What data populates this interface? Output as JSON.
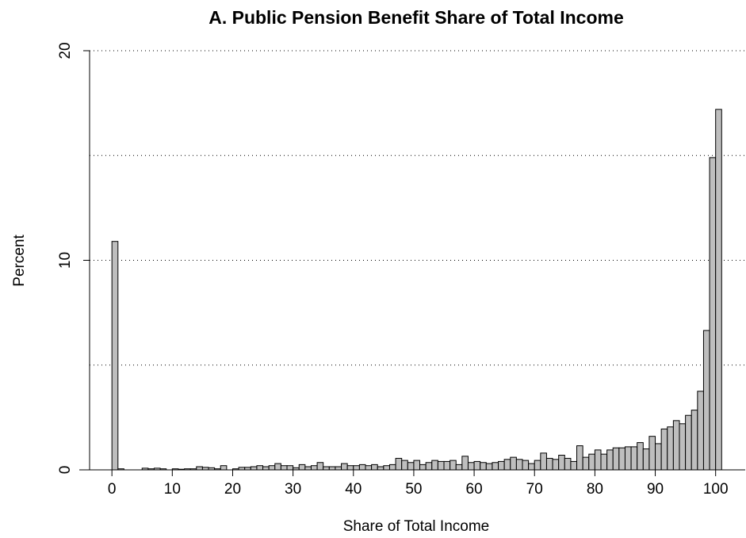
{
  "chart_data": {
    "type": "histogram",
    "title": "A. Public Pension Benefit Share of Total Income",
    "x_label": "Share of Total Income",
    "y_label": "Percent",
    "bins": [
      0,
      1,
      2,
      3,
      4,
      5,
      6,
      7,
      8,
      9,
      10,
      11,
      12,
      13,
      14,
      15,
      16,
      17,
      18,
      19,
      20,
      21,
      22,
      23,
      24,
      25,
      26,
      27,
      28,
      29,
      30,
      31,
      32,
      33,
      34,
      35,
      36,
      37,
      38,
      39,
      40,
      41,
      42,
      43,
      44,
      45,
      46,
      47,
      48,
      49,
      50,
      51,
      52,
      53,
      54,
      55,
      56,
      57,
      58,
      59,
      60,
      61,
      62,
      63,
      64,
      65,
      66,
      67,
      68,
      69,
      70,
      71,
      72,
      73,
      74,
      75,
      76,
      77,
      78,
      79,
      80,
      81,
      82,
      83,
      84,
      85,
      86,
      87,
      88,
      89,
      90,
      91,
      92,
      93,
      94,
      95,
      96,
      97,
      98,
      99,
      100,
      101
    ],
    "values": [
      10.9,
      0.05,
      0,
      0,
      0,
      0.08,
      0.05,
      0.08,
      0.05,
      0,
      0.05,
      0.03,
      0.05,
      0.05,
      0.15,
      0.12,
      0.1,
      0.05,
      0.2,
      0,
      0.05,
      0.12,
      0.12,
      0.15,
      0.2,
      0.15,
      0.2,
      0.3,
      0.2,
      0.2,
      0.1,
      0.25,
      0.15,
      0.2,
      0.35,
      0.15,
      0.15,
      0.15,
      0.3,
      0.2,
      0.2,
      0.25,
      0.2,
      0.25,
      0.15,
      0.2,
      0.25,
      0.55,
      0.45,
      0.35,
      0.45,
      0.25,
      0.35,
      0.45,
      0.4,
      0.4,
      0.45,
      0.25,
      0.65,
      0.35,
      0.4,
      0.35,
      0.3,
      0.35,
      0.4,
      0.5,
      0.6,
      0.5,
      0.45,
      0.3,
      0.45,
      0.8,
      0.55,
      0.5,
      0.7,
      0.55,
      0.4,
      1.15,
      0.6,
      0.75,
      0.95,
      0.75,
      0.95,
      1.05,
      1.05,
      1.1,
      1.1,
      1.3,
      1.0,
      1.6,
      1.25,
      1.95,
      2.05,
      2.35,
      2.2,
      2.6,
      2.85,
      3.75,
      6.65,
      14.9,
      17.2
    ],
    "color": "#bebebe",
    "xlim": [
      -3.7,
      104.9
    ],
    "ylim": [
      0,
      20
    ],
    "xticks": [
      0,
      10,
      20,
      30,
      40,
      50,
      60,
      70,
      80,
      90,
      100
    ],
    "yticks": [
      0,
      10,
      20
    ],
    "hgrid": [
      5,
      10,
      15,
      20
    ]
  }
}
